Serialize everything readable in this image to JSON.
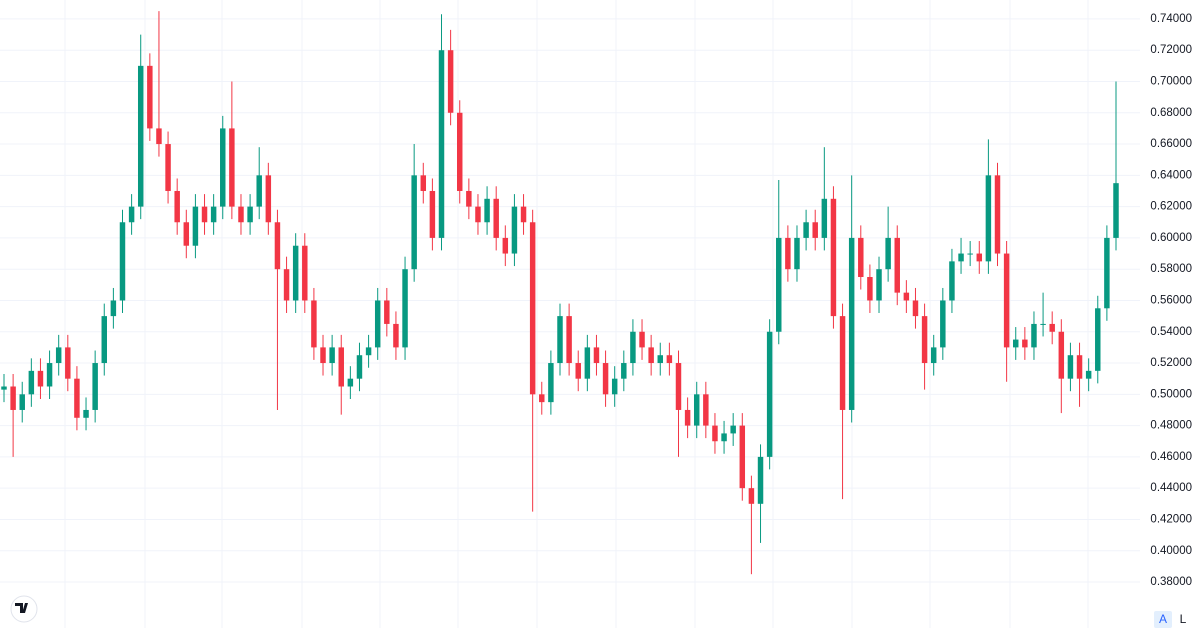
{
  "chart_data": {
    "type": "candlestick",
    "up_color": "#089981",
    "down_color": "#f23645",
    "ylim": [
      0.3506,
      0.7521
    ],
    "yticks": [
      {
        "value": 0.38,
        "label": "0.38000"
      },
      {
        "value": 0.4,
        "label": "0.40000"
      },
      {
        "value": 0.42,
        "label": "0.42000"
      },
      {
        "value": 0.44,
        "label": "0.44000"
      },
      {
        "value": 0.46,
        "label": "0.46000"
      },
      {
        "value": 0.48,
        "label": "0.48000"
      },
      {
        "value": 0.5,
        "label": "0.50000"
      },
      {
        "value": 0.52,
        "label": "0.52000"
      },
      {
        "value": 0.54,
        "label": "0.54000"
      },
      {
        "value": 0.56,
        "label": "0.56000"
      },
      {
        "value": 0.58,
        "label": "0.58000"
      },
      {
        "value": 0.6,
        "label": "0.60000"
      },
      {
        "value": 0.62,
        "label": "0.62000"
      },
      {
        "value": 0.64,
        "label": "0.64000"
      },
      {
        "value": 0.66,
        "label": "0.66000"
      },
      {
        "value": 0.68,
        "label": "0.68000"
      },
      {
        "value": 0.7,
        "label": "0.70000"
      },
      {
        "value": 0.72,
        "label": "0.72000"
      },
      {
        "value": 0.74,
        "label": "0.74000"
      }
    ],
    "grid": true,
    "buttons": [
      "A",
      "L"
    ],
    "open": [
      0.503,
      0.505,
      0.49,
      0.5,
      0.515,
      0.505,
      0.52,
      0.53,
      0.51,
      0.485,
      0.49,
      0.52,
      0.55,
      0.56,
      0.61,
      0.62,
      0.71,
      0.67,
      0.66,
      0.63,
      0.61,
      0.595,
      0.62,
      0.61,
      0.62,
      0.67,
      0.62,
      0.61,
      0.62,
      0.64,
      0.61,
      0.58,
      0.56,
      0.595,
      0.56,
      0.53,
      0.52,
      0.53,
      0.505,
      0.51,
      0.525,
      0.53,
      0.56,
      0.545,
      0.53,
      0.58,
      0.64,
      0.63,
      0.6,
      0.72,
      0.68,
      0.63,
      0.62,
      0.61,
      0.625,
      0.6,
      0.59,
      0.62,
      0.61,
      0.5,
      0.495,
      0.52,
      0.55,
      0.52,
      0.51,
      0.53,
      0.52,
      0.5,
      0.51,
      0.52,
      0.54,
      0.53,
      0.52,
      0.525,
      0.52,
      0.49,
      0.48,
      0.5,
      0.48,
      0.47,
      0.475,
      0.48,
      0.44,
      0.43,
      0.46,
      0.54,
      0.6,
      0.58,
      0.6,
      0.61,
      0.6,
      0.625,
      0.55,
      0.49,
      0.6,
      0.575,
      0.56,
      0.58,
      0.6,
      0.565,
      0.56,
      0.55,
      0.52,
      0.53,
      0.56,
      0.585,
      0.59,
      0.59,
      0.585,
      0.64,
      0.59,
      0.53,
      0.535,
      0.53,
      0.545,
      0.545,
      0.54,
      0.51,
      0.525,
      0.51,
      0.515,
      0.555,
      0.6
    ],
    "high": [
      0.513,
      0.513,
      0.508,
      0.523,
      0.523,
      0.528,
      0.538,
      0.538,
      0.518,
      0.498,
      0.528,
      0.558,
      0.568,
      0.618,
      0.628,
      0.73,
      0.718,
      0.745,
      0.668,
      0.638,
      0.618,
      0.628,
      0.628,
      0.628,
      0.678,
      0.7,
      0.628,
      0.628,
      0.658,
      0.648,
      0.618,
      0.588,
      0.603,
      0.603,
      0.568,
      0.538,
      0.538,
      0.538,
      0.518,
      0.533,
      0.538,
      0.568,
      0.568,
      0.553,
      0.588,
      0.66,
      0.648,
      0.638,
      0.743,
      0.733,
      0.688,
      0.638,
      0.628,
      0.633,
      0.633,
      0.608,
      0.628,
      0.628,
      0.618,
      0.508,
      0.528,
      0.558,
      0.558,
      0.528,
      0.538,
      0.538,
      0.528,
      0.518,
      0.528,
      0.548,
      0.548,
      0.538,
      0.533,
      0.533,
      0.528,
      0.498,
      0.508,
      0.508,
      0.488,
      0.483,
      0.488,
      0.488,
      0.448,
      0.468,
      0.548,
      0.637,
      0.608,
      0.608,
      0.618,
      0.618,
      0.658,
      0.633,
      0.558,
      0.64,
      0.608,
      0.583,
      0.588,
      0.62,
      0.608,
      0.573,
      0.568,
      0.558,
      0.538,
      0.568,
      0.593,
      0.6,
      0.598,
      0.598,
      0.663,
      0.648,
      0.598,
      0.543,
      0.543,
      0.553,
      0.565,
      0.553,
      0.548,
      0.533,
      0.533,
      0.523,
      0.563,
      0.608,
      0.7
    ],
    "low": [
      0.495,
      0.46,
      0.482,
      0.492,
      0.497,
      0.497,
      0.512,
      0.502,
      0.477,
      0.477,
      0.482,
      0.512,
      0.542,
      0.552,
      0.602,
      0.612,
      0.662,
      0.652,
      0.622,
      0.602,
      0.587,
      0.587,
      0.602,
      0.602,
      0.612,
      0.612,
      0.602,
      0.602,
      0.612,
      0.602,
      0.49,
      0.552,
      0.552,
      0.552,
      0.522,
      0.512,
      0.512,
      0.487,
      0.497,
      0.502,
      0.517,
      0.522,
      0.537,
      0.522,
      0.522,
      0.572,
      0.622,
      0.592,
      0.592,
      0.672,
      0.622,
      0.612,
      0.602,
      0.602,
      0.592,
      0.582,
      0.582,
      0.602,
      0.425,
      0.487,
      0.487,
      0.512,
      0.512,
      0.502,
      0.502,
      0.512,
      0.492,
      0.492,
      0.502,
      0.512,
      0.522,
      0.512,
      0.512,
      0.512,
      0.46,
      0.472,
      0.472,
      0.472,
      0.462,
      0.462,
      0.467,
      0.432,
      0.385,
      0.405,
      0.452,
      0.532,
      0.572,
      0.572,
      0.592,
      0.592,
      0.592,
      0.542,
      0.433,
      0.482,
      0.567,
      0.552,
      0.552,
      0.572,
      0.557,
      0.552,
      0.542,
      0.503,
      0.512,
      0.522,
      0.552,
      0.577,
      0.582,
      0.577,
      0.577,
      0.582,
      0.508,
      0.522,
      0.522,
      0.522,
      0.537,
      0.532,
      0.488,
      0.502,
      0.492,
      0.502,
      0.507,
      0.547,
      0.592
    ],
    "close": [
      0.505,
      0.49,
      0.5,
      0.515,
      0.505,
      0.52,
      0.53,
      0.51,
      0.485,
      0.49,
      0.52,
      0.55,
      0.56,
      0.61,
      0.62,
      0.71,
      0.67,
      0.66,
      0.63,
      0.61,
      0.595,
      0.62,
      0.61,
      0.62,
      0.67,
      0.62,
      0.61,
      0.62,
      0.64,
      0.61,
      0.58,
      0.56,
      0.595,
      0.56,
      0.53,
      0.52,
      0.53,
      0.505,
      0.51,
      0.525,
      0.53,
      0.56,
      0.545,
      0.53,
      0.58,
      0.64,
      0.63,
      0.6,
      0.72,
      0.68,
      0.63,
      0.62,
      0.61,
      0.625,
      0.6,
      0.59,
      0.62,
      0.61,
      0.5,
      0.495,
      0.52,
      0.55,
      0.52,
      0.51,
      0.53,
      0.52,
      0.5,
      0.51,
      0.52,
      0.54,
      0.53,
      0.52,
      0.525,
      0.52,
      0.49,
      0.48,
      0.5,
      0.48,
      0.47,
      0.475,
      0.48,
      0.44,
      0.43,
      0.46,
      0.54,
      0.6,
      0.58,
      0.6,
      0.61,
      0.6,
      0.625,
      0.55,
      0.49,
      0.6,
      0.575,
      0.56,
      0.58,
      0.6,
      0.565,
      0.56,
      0.55,
      0.52,
      0.53,
      0.56,
      0.585,
      0.59,
      0.59,
      0.585,
      0.64,
      0.59,
      0.53,
      0.535,
      0.53,
      0.545,
      0.545,
      0.54,
      0.51,
      0.525,
      0.51,
      0.515,
      0.555,
      0.6,
      0.635
    ]
  }
}
